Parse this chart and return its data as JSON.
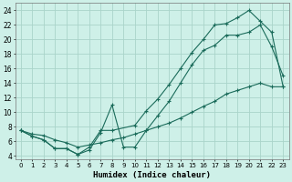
{
  "xlabel": "Humidex (Indice chaleur)",
  "bg_color": "#cef0e8",
  "grid_color": "#aad4ca",
  "line_color": "#1a6b5a",
  "xlim": [
    -0.5,
    23.5
  ],
  "ylim": [
    3.5,
    25.0
  ],
  "xticks": [
    0,
    1,
    2,
    3,
    4,
    5,
    6,
    7,
    8,
    9,
    10,
    11,
    12,
    13,
    14,
    15,
    16,
    17,
    18,
    19,
    20,
    21,
    22,
    23
  ],
  "yticks": [
    4,
    6,
    8,
    10,
    12,
    14,
    16,
    18,
    20,
    22,
    24
  ],
  "line1_x": [
    0,
    1,
    2,
    3,
    4,
    5,
    6,
    7,
    8,
    9,
    10,
    11,
    12,
    13,
    14,
    15,
    16,
    17,
    18,
    19,
    20,
    21,
    22,
    23
  ],
  "line1_y": [
    7.5,
    6.7,
    6.2,
    5.0,
    5.0,
    4.2,
    4.8,
    7.2,
    11.0,
    5.2,
    5.2,
    7.5,
    9.5,
    11.5,
    14.0,
    16.5,
    18.5,
    19.2,
    20.6,
    20.6,
    21.0,
    22.0,
    19.0,
    15.0
  ],
  "line2_x": [
    0,
    1,
    2,
    3,
    4,
    5,
    6,
    7,
    8,
    10,
    11,
    12,
    13,
    14,
    15,
    16,
    17,
    18,
    19,
    20,
    21,
    22,
    23
  ],
  "line2_y": [
    7.5,
    6.7,
    6.2,
    5.0,
    5.0,
    4.2,
    5.2,
    7.5,
    7.5,
    8.2,
    10.2,
    11.8,
    13.8,
    16.0,
    18.2,
    20.0,
    22.0,
    22.2,
    23.0,
    24.0,
    22.5,
    21.0,
    13.5
  ],
  "line3_x": [
    0,
    1,
    2,
    3,
    4,
    5,
    6,
    7,
    8,
    9,
    10,
    11,
    12,
    13,
    14,
    15,
    16,
    17,
    18,
    19,
    20,
    21,
    22,
    23
  ],
  "line3_y": [
    7.5,
    7.0,
    6.8,
    6.2,
    5.8,
    5.2,
    5.5,
    5.8,
    6.2,
    6.5,
    7.0,
    7.5,
    8.0,
    8.5,
    9.2,
    10.0,
    10.8,
    11.5,
    12.5,
    13.0,
    13.5,
    14.0,
    13.5,
    13.5
  ]
}
